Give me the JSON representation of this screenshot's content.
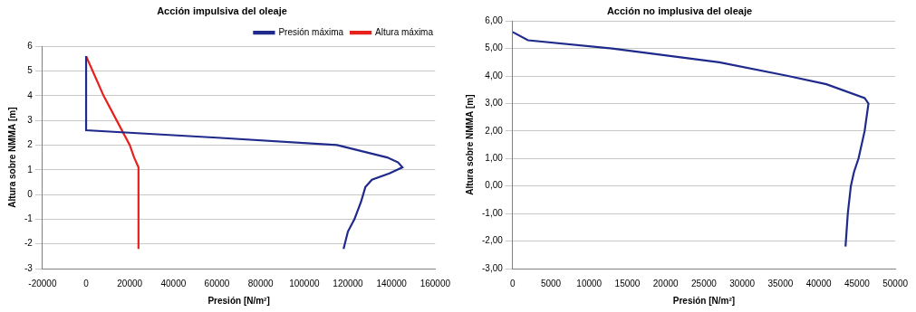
{
  "chart_data": [
    {
      "type": "line",
      "title": "Acción impulsiva del oleaje",
      "x_label": "Presión [N/m²]",
      "y_label": "Altura sobre NMMA [m]",
      "xlim": [
        -20000,
        160000
      ],
      "xticks": [
        -20000,
        0,
        20000,
        40000,
        60000,
        80000,
        100000,
        120000,
        140000,
        160000
      ],
      "ylim": [
        -3,
        6
      ],
      "yticks": [
        -3,
        -2,
        -1,
        0,
        1,
        2,
        3,
        4,
        5,
        6
      ],
      "grid": true,
      "legend": "upper right",
      "series": [
        {
          "name": "Presión máxima",
          "color": "#1f2a8c",
          "x": [
            118000,
            120000,
            123000,
            126000,
            127000,
            128000,
            131000,
            139000,
            145000,
            143000,
            138000,
            115000,
            60000,
            0,
            0
          ],
          "y": [
            -2.2,
            -1.5,
            -1,
            -0.3,
            0,
            0.3,
            0.6,
            0.85,
            1.1,
            1.3,
            1.5,
            2.0,
            2.3,
            2.6,
            5.6
          ]
        },
        {
          "name": "Altura máxima",
          "color": "#e8201c",
          "x": [
            24000,
            24000,
            24000,
            24000,
            22000,
            20000,
            14000,
            8000,
            3000,
            0
          ],
          "y": [
            -2.2,
            -1,
            0,
            1.1,
            1.5,
            2,
            3,
            4,
            5,
            5.6
          ]
        }
      ]
    },
    {
      "type": "line",
      "title": "Acción no implusiva del oleaje",
      "x_label": "Presión [N/m²]",
      "y_label": "Altura sobre NMMA [m]",
      "xlim": [
        0,
        50000
      ],
      "xticks": [
        0,
        5000,
        10000,
        15000,
        20000,
        25000,
        30000,
        35000,
        40000,
        45000,
        50000
      ],
      "ylim": [
        -3,
        6
      ],
      "yticks": [
        {
          "value": -3,
          "label": "-3,00"
        },
        {
          "value": -2,
          "label": "-2,00"
        },
        {
          "value": -1,
          "label": "-1,00"
        },
        {
          "value": 0,
          "label": "0,00"
        },
        {
          "value": 1,
          "label": "1,00"
        },
        {
          "value": 2,
          "label": "2,00"
        },
        {
          "value": 3,
          "label": "3,00"
        },
        {
          "value": 4,
          "label": "4,00"
        },
        {
          "value": 5,
          "label": "5,00"
        },
        {
          "value": 6,
          "label": "6,00"
        }
      ],
      "grid": true,
      "series": [
        {
          "color": "#1f2a8c",
          "x": [
            43500,
            43800,
            44200,
            44600,
            45200,
            46000,
            46500,
            46000,
            41000,
            36000,
            27000,
            13000,
            2000,
            0
          ],
          "y": [
            -2.2,
            -1,
            0,
            0.5,
            1,
            2,
            3,
            3.2,
            3.7,
            4,
            4.5,
            5,
            5.3,
            5.6
          ]
        }
      ]
    }
  ]
}
